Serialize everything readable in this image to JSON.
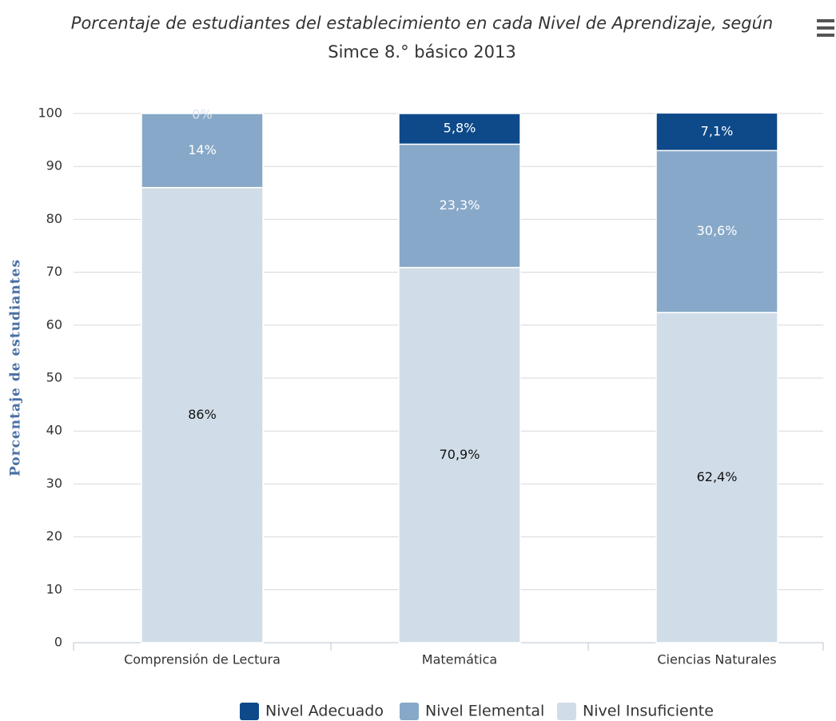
{
  "chart_data": {
    "type": "stacked_bar",
    "title": [
      "Porcentaje de estudiantes del establecimiento en cada Nivel de Aprendizaje, según",
      "Simce 8.° básico 2013"
    ],
    "y_label": "Porcentaje de estudiantes",
    "categories": [
      "Comprensión de Lectura",
      "Matemática",
      "Ciencias Naturales"
    ],
    "series": [
      {
        "name": "Nivel Adecuado",
        "color": "#0e4a8a",
        "label_color": "#ffffff",
        "values": [
          0,
          5.8,
          7.1
        ],
        "value_labels": [
          "0%",
          "5,8%",
          "7,1%"
        ]
      },
      {
        "name": "Nivel Elemental",
        "color": "#87a8c8",
        "label_color": "#ffffff",
        "values": [
          14,
          23.3,
          30.6
        ],
        "value_labels": [
          "14%",
          "23,3%",
          "30,6%"
        ]
      },
      {
        "name": "Nivel Insuficiente",
        "color": "#d0dde8",
        "label_color": "#111111",
        "values": [
          86,
          70.9,
          62.4
        ],
        "value_labels": [
          "86%",
          "70,9%",
          "62,4%"
        ]
      }
    ],
    "ylim": [
      0,
      100
    ],
    "yticks": [
      0,
      10,
      20,
      30,
      40,
      50,
      60,
      70,
      80,
      90,
      100
    ],
    "grid": true,
    "legend": "bottom"
  }
}
